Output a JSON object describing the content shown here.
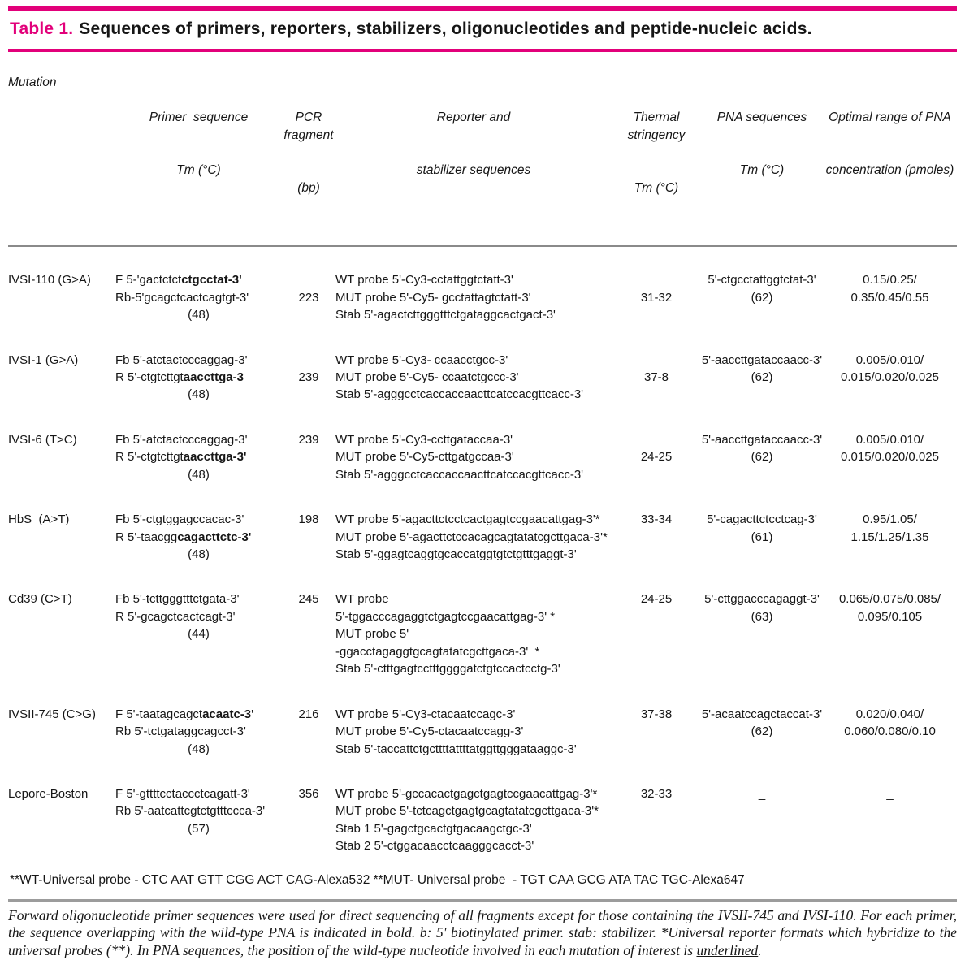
{
  "colors": {
    "accent": "#e2007a",
    "rule_gray": "#9c9c9c"
  },
  "title": {
    "label": "Table 1.",
    "text": "Sequences of primers, reporters, stabilizers, oligonucleotides and peptide-nucleic acids."
  },
  "table": {
    "header": {
      "mutation": "Mutation",
      "primer": [
        "Primer  sequence",
        "Tm (°C)"
      ],
      "pcr": [
        "PCR fragment",
        "(bp)"
      ],
      "reporter": [
        "Reporter and",
        "stabilizer sequences"
      ],
      "thermal": [
        "Thermal stringency",
        "Tm (°C)"
      ],
      "pna": [
        "PNA sequences",
        "Tm (°C)"
      ],
      "optimal": [
        "Optimal range of PNA",
        "concentration (pmoles)"
      ]
    },
    "rows": [
      {
        "mutation": "IVSI-110 (G>A)",
        "primer": [
          {
            "seg": [
              {
                "t": "F 5-'gactctct"
              },
              {
                "t": "ctgcctat-3'",
                "b": true
              }
            ]
          },
          {
            "seg": [
              {
                "t": "Rb-5'gcagctcactcagtgt-3'"
              }
            ]
          },
          {
            "seg": [
              {
                "t": "(48)"
              }
            ],
            "center": true
          }
        ],
        "pcr": {
          "value": "223",
          "offset": 1
        },
        "reporter": [
          "WT probe 5'-Cy3-cctattggtctatt-3'",
          "MUT probe 5'-Cy5- gcctattagtctatt-3'",
          "Stab 5'-agactcttgggtttctgataggcactgact-3'"
        ],
        "thermal": {
          "value": "31-32",
          "offset": 1
        },
        "pna": [
          "5'-ctgcctattggtctat-3'",
          "(62)"
        ],
        "optimal": [
          "0.15/0.25/",
          "0.35/0.45/0.55"
        ]
      },
      {
        "mutation": "IVSI-1 (G>A)",
        "primer": [
          {
            "seg": [
              {
                "t": "Fb 5'-atctactcccaggag-3'"
              }
            ]
          },
          {
            "seg": [
              {
                "t": "R 5'-ctgtcttgt"
              },
              {
                "t": "aaccttga-3",
                "b": true
              }
            ]
          },
          {
            "seg": [
              {
                "t": "(48)"
              }
            ],
            "center": true
          }
        ],
        "pcr": {
          "value": "239",
          "offset": 1
        },
        "reporter": [
          "WT probe 5'-Cy3- ccaacctgcc-3'",
          "MUT probe 5'-Cy5- ccaatctgccc-3'",
          "Stab 5'-agggcctcaccaccaacttcatccacgttcacc-3'"
        ],
        "thermal": {
          "value": "37-8",
          "offset": 1
        },
        "pna": [
          "5'-aaccttgataccaacc-3'",
          "(62)"
        ],
        "optimal": [
          "0.005/0.010/",
          "0.015/0.020/0.025"
        ]
      },
      {
        "mutation": "IVSI-6 (T>C)",
        "primer": [
          {
            "seg": [
              {
                "t": "Fb 5'-atctactcccaggag-3'"
              }
            ]
          },
          {
            "seg": [
              {
                "t": "R 5'-ctgtcttgt"
              },
              {
                "t": "aaccttga-3'",
                "b": true
              }
            ]
          },
          {
            "seg": [
              {
                "t": "(48)"
              }
            ],
            "center": true
          }
        ],
        "pcr": {
          "value": "239",
          "offset": 0
        },
        "reporter": [
          "WT probe 5'-Cy3-ccttgataccaa-3'",
          "MUT probe 5'-Cy5-cttgatgccaa-3'",
          "Stab 5'-agggcctcaccaccaacttcatccacgttcacc-3'"
        ],
        "thermal": {
          "value": "24-25",
          "offset": 1
        },
        "pna": [
          "5'-aaccttgataccaacc-3'",
          "(62)"
        ],
        "optimal": [
          "0.005/0.010/",
          "0.015/0.020/0.025"
        ]
      },
      {
        "mutation": "HbS  (A>T)",
        "primer": [
          {
            "seg": [
              {
                "t": "Fb 5'-ctgtggagccacac-3'"
              }
            ]
          },
          {
            "seg": [
              {
                "t": "R 5'-taacgg"
              },
              {
                "t": "cagacttctc-3'",
                "b": true
              }
            ]
          },
          {
            "seg": [
              {
                "t": "(48)"
              }
            ],
            "center": true
          }
        ],
        "pcr": {
          "value": "198",
          "offset": 0
        },
        "reporter": [
          "WT probe 5'-agacttctcctcactgagtccgaacattgag-3'*",
          "MUT probe 5'-agacttctccacagcagtatatcgcttgaca-3'*",
          "Stab 5'-ggagtcaggtgcaccatggtgtctgtttgaggt-3'"
        ],
        "thermal": {
          "value": "33-34",
          "offset": 0
        },
        "pna": [
          "5'-cagacttctcctcag-3'",
          "(61)"
        ],
        "optimal": [
          "0.95/1.05/",
          "1.15/1.25/1.35"
        ]
      },
      {
        "mutation": "Cd39 (C>T)",
        "primer": [
          {
            "seg": [
              {
                "t": "Fb 5'-tcttgggtttctgata-3'"
              }
            ]
          },
          {
            "seg": [
              {
                "t": "R 5'-gcagctcactcagt-3'"
              }
            ]
          },
          {
            "seg": [
              {
                "t": "(44)"
              }
            ],
            "center": true
          }
        ],
        "pcr": {
          "value": "245",
          "offset": 0
        },
        "reporter": [
          "WT probe",
          "5'-tggacccagaggtctgagtccgaacattgag-3' *",
          "MUT probe 5'",
          "-ggacctagaggtgcagtatatcgcttgaca-3'  *",
          "Stab 5'-ctttgagtcctttggggatctgtccactcctg-3'"
        ],
        "thermal": {
          "value": "24-25",
          "offset": 0
        },
        "pna": [
          "5'-cttggacccagaggt-3'",
          "(63)"
        ],
        "optimal": [
          "0.065/0.075/0.085/",
          "0.095/0.105"
        ]
      },
      {
        "mutation": "IVSII-745 (C>G)",
        "primer": [
          {
            "seg": [
              {
                "t": "F 5'-taatagcagct"
              },
              {
                "t": "acaatc-3'",
                "b": true
              }
            ]
          },
          {
            "seg": [
              {
                "t": "Rb 5'-tctgataggcagcct-3'"
              }
            ]
          },
          {
            "seg": [
              {
                "t": "(48)"
              }
            ],
            "center": true
          }
        ],
        "pcr": {
          "value": "216",
          "offset": 0
        },
        "reporter": [
          "WT probe 5'-Cy3-ctacaatccagc-3'",
          "MUT probe 5'-Cy5-ctacaatccagg-3'",
          "Stab 5'-taccattctgcttttattttatggttgggataaggc-3'"
        ],
        "thermal": {
          "value": "37-38",
          "offset": 0
        },
        "pna": [
          "5'-acaatccagctaccat-3'",
          "(62)"
        ],
        "optimal": [
          "0.020/0.040/",
          "0.060/0.080/0.10"
        ]
      },
      {
        "mutation": "Lepore-Boston",
        "primer": [
          {
            "seg": [
              {
                "t": "F 5'-gttttcctaccctcagatt-3'"
              }
            ]
          },
          {
            "seg": [
              {
                "t": "Rb 5'-aatcattcgtctgtttccca-3'"
              }
            ]
          },
          {
            "seg": [
              {
                "t": "(57)"
              }
            ],
            "center": true
          }
        ],
        "pcr": {
          "value": "356",
          "offset": 0
        },
        "reporter": [
          "WT probe 5'-gccacactgagctgagtccgaacattgag-3'*",
          "MUT probe 5'-tctcagctgagtgcagtatatcgcttgaca-3'*",
          "Stab 1 5'-gagctgcactgtgacaagctgc-3'",
          "Stab 2 5'-ctggacaacctcaagggcacct-3'"
        ],
        "thermal": {
          "value": "32-33",
          "offset": 0
        },
        "pna": [
          "_"
        ],
        "optimal": [
          "_"
        ]
      }
    ]
  },
  "footnotes": {
    "universal": "**WT-Universal probe - CTC AAT GTT CGG ACT CAG-Alexa532 **MUT- Universal probe  - TGT CAA GCG ATA TAC TGC-Alexa647",
    "note_body": "Forward oligonucleotide primer sequences were used for direct sequencing of all fragments except for those containing the IVSII-745 and IVSI-110. For each primer, the sequence overlapping with the wild-type PNA is indicated in bold. b: 5' biotinylated primer. stab: stabilizer. *Universal reporter formats which hybridize to the universal probes (**). In PNA sequences, the position of the wild-type nucleotide involved in each mutation of interest is ",
    "note_underlined": "underlined",
    "note_end": "."
  }
}
